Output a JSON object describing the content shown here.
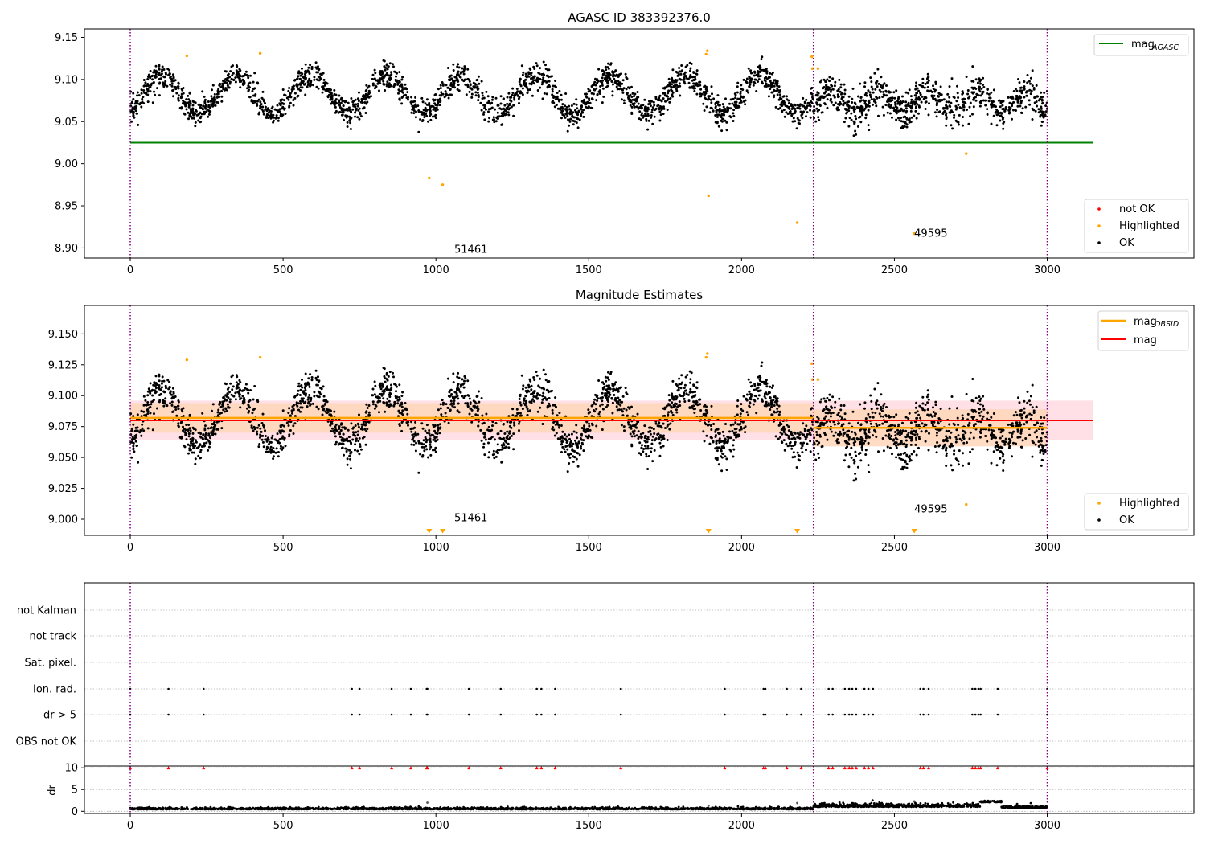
{
  "colors": {
    "ok": "#000000",
    "highlighted": "#ffa500",
    "not_ok": "#ff0000",
    "mag_agasc": "#008000",
    "mag_obsid": "#ffa500",
    "mag": "#ff0000",
    "obs_boundary": "#800080",
    "band_mag": "#ffe0e6",
    "band_obsid": "#ffd6b8",
    "gridline": "#b0b0b0"
  },
  "chart_data": [
    {
      "id": "agasc",
      "type": "scatter",
      "title": "AGASC ID 383392376.0",
      "xlabel": "",
      "ylabel": "",
      "xlim": [
        -150,
        3480
      ],
      "ylim": [
        8.888,
        9.16
      ],
      "xticks": [
        "0",
        "500",
        "1000",
        "1500",
        "2000",
        "2500",
        "3000"
      ],
      "yticks": [
        "8.90",
        "8.95",
        "9.00",
        "9.05",
        "9.10",
        "9.15"
      ],
      "obs_boundaries": [
        0,
        2235,
        3000
      ],
      "mag_agasc": {
        "value": 9.025,
        "x": [
          0,
          3150
        ]
      },
      "observation_labels": [
        {
          "text": "51461",
          "x": 1060,
          "y": 8.898
        },
        {
          "text": "49595",
          "x": 2565,
          "y": 8.917
        }
      ],
      "highlighted_points": [
        {
          "x": 185,
          "y": 9.128
        },
        {
          "x": 425,
          "y": 9.131
        },
        {
          "x": 978,
          "y": 8.983
        },
        {
          "x": 1022,
          "y": 8.975
        },
        {
          "x": 1888,
          "y": 9.134
        },
        {
          "x": 1884,
          "y": 9.13
        },
        {
          "x": 1892,
          "y": 8.962
        },
        {
          "x": 2182,
          "y": 8.93
        },
        {
          "x": 2230,
          "y": 9.127
        },
        {
          "x": 2232,
          "y": 9.113
        },
        {
          "x": 2250,
          "y": 9.113
        },
        {
          "x": 2565,
          "y": 8.917
        },
        {
          "x": 2735,
          "y": 9.012
        }
      ],
      "ok_series": {
        "n_points": 3000,
        "segment_1": {
          "x_range": [
            0,
            2235
          ],
          "baseline": 9.082,
          "amplitude": 0.022,
          "period": 245,
          "scatter": 0.008
        },
        "segment_2": {
          "x_range": [
            2235,
            3000
          ],
          "baseline": 9.074,
          "amplitude": 0.012,
          "period": 160,
          "scatter": 0.011
        }
      },
      "legend_top": [
        {
          "label": "mag",
          "sub": "AGASC",
          "color_key": "mag_agasc"
        }
      ],
      "legend_bottom": [
        {
          "label": "not OK",
          "color_key": "not_ok"
        },
        {
          "label": "Highlighted",
          "color_key": "highlighted"
        },
        {
          "label": "OK",
          "color_key": "ok"
        }
      ]
    },
    {
      "id": "estimates",
      "type": "scatter",
      "title": "Magnitude Estimates",
      "xlabel": "",
      "ylabel": "",
      "xlim": [
        -150,
        3480
      ],
      "ylim": [
        8.987,
        9.173
      ],
      "xticks": [
        "0",
        "500",
        "1000",
        "1500",
        "2000",
        "2500",
        "3000"
      ],
      "yticks": [
        "9.000",
        "9.025",
        "9.050",
        "9.075",
        "9.100",
        "9.125",
        "9.150"
      ],
      "obs_boundaries": [
        0,
        2235,
        3000
      ],
      "mag": {
        "value": 9.08,
        "band": [
          9.064,
          9.096
        ],
        "x": [
          0,
          3150
        ]
      },
      "mag_obsid": [
        {
          "x": [
            0,
            2235
          ],
          "value": 9.082,
          "band": [
            9.07,
            9.094
          ]
        },
        {
          "x": [
            2235,
            3000
          ],
          "value": 9.074,
          "band": [
            9.059,
            9.089
          ]
        }
      ],
      "observation_labels": [
        {
          "text": "51461",
          "x": 1060,
          "y": 9.001
        },
        {
          "text": "49595",
          "x": 2565,
          "y": 9.008
        }
      ],
      "highlighted_points": [
        {
          "x": 185,
          "y": 9.129
        },
        {
          "x": 425,
          "y": 9.131
        },
        {
          "x": 1888,
          "y": 9.134
        },
        {
          "x": 1884,
          "y": 9.131
        },
        {
          "x": 2230,
          "y": 9.126
        },
        {
          "x": 2232,
          "y": 9.113
        },
        {
          "x": 2250,
          "y": 9.113
        },
        {
          "x": 2735,
          "y": 9.012
        }
      ],
      "off_scale_markers": [
        978,
        1022,
        1892,
        2182,
        2565
      ],
      "legend_top": [
        {
          "label": "mag",
          "sub": "OBSID",
          "color_key": "mag_obsid"
        },
        {
          "label": "mag",
          "sub": "",
          "color_key": "mag"
        }
      ],
      "legend_bottom": [
        {
          "label": "Highlighted",
          "color_key": "highlighted"
        },
        {
          "label": "OK",
          "color_key": "ok"
        }
      ]
    },
    {
      "id": "flags",
      "type": "scatter",
      "title": "",
      "xlim": [
        -150,
        3480
      ],
      "obs_boundaries": [
        0,
        2235,
        3000
      ],
      "rows": [
        "not Kalman",
        "not track",
        "Sat. pixel.",
        "Ion. rad.",
        "dr > 5",
        "OBS not OK"
      ],
      "flagged_x": [
        0,
        125,
        240,
        725,
        750,
        855,
        918,
        970,
        972,
        1108,
        1212,
        1330,
        1345,
        1390,
        1605,
        1945,
        2072,
        2078,
        2148,
        2195,
        2285,
        2298,
        2338,
        2352,
        2362,
        2375,
        2402,
        2415,
        2430,
        2585,
        2595,
        2612,
        2755,
        2765,
        2775,
        2782,
        2838,
        3000
      ]
    },
    {
      "id": "dr",
      "type": "scatter",
      "title": "",
      "xlabel": "",
      "ylabel": "dr",
      "xlim": [
        -150,
        3480
      ],
      "ylim": [
        -0.5,
        10.4
      ],
      "xticks": [
        "0",
        "500",
        "1000",
        "1500",
        "2000",
        "2500",
        "3000"
      ],
      "yticks": [
        "0",
        "5",
        "10"
      ],
      "obs_boundaries": [
        0,
        2235,
        3000
      ],
      "dr_segments": [
        {
          "x_range": [
            0,
            2235
          ],
          "mean": 0.45,
          "scatter": 0.22
        },
        {
          "x_range": [
            2235,
            2780
          ],
          "mean": 1.0,
          "scatter": 0.45
        },
        {
          "x_range": [
            2780,
            2850
          ],
          "mean": 2.1,
          "scatter": 0.2
        },
        {
          "x_range": [
            2850,
            3000
          ],
          "mean": 0.75,
          "scatter": 0.3
        }
      ],
      "dr_outliers": [
        {
          "x": 972,
          "y": 2.0
        },
        {
          "x": 1892,
          "y": 1.3
        },
        {
          "x": 2182,
          "y": 1.9
        },
        {
          "x": 2565,
          "y": 2.3
        }
      ],
      "flag_marker_value": 10
    }
  ]
}
